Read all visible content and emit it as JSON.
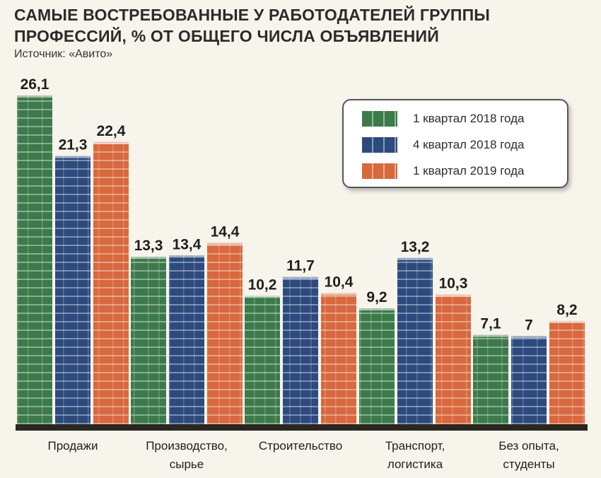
{
  "title": "САМЫЕ ВОСТРЕБОВАННЫЕ У РАБОТОДАТЕЛЕЙ ГРУППЫ ПРОФЕССИЙ, % ОТ ОБЩЕГО ЧИСЛА ОБЪЯВЛЕНИЙ",
  "source": "Источник: «Авито»",
  "colors": {
    "green": "#3d7a4b",
    "blue": "#2d4a7e",
    "orange": "#d8683d",
    "base": "#2a2620"
  },
  "chart_data": {
    "type": "bar",
    "title": "САМЫЕ ВОСТРЕБОВАННЫЕ У РАБОТОДАТЕЛЕЙ ГРУППЫ ПРОФЕССИЙ, % ОТ ОБЩЕГО ЧИСЛА ОБЪЯВЛЕНИЙ",
    "categories": [
      [
        "Продажи"
      ],
      [
        "Производство,",
        "сырье"
      ],
      [
        "Строительство"
      ],
      [
        "Транспорт,",
        "логистика"
      ],
      [
        "Без опыта,",
        "студенты"
      ]
    ],
    "series": [
      {
        "name": "1 квартал 2018 года",
        "values": [
          26.1,
          13.3,
          10.2,
          9.2,
          7.1
        ],
        "labels": [
          "26,1",
          "13,3",
          "10,2",
          "9,2",
          "7,1"
        ],
        "color": "#3d7a4b"
      },
      {
        "name": "4 квартал 2018 года",
        "values": [
          21.3,
          13.4,
          11.7,
          13.2,
          7
        ],
        "labels": [
          "21,3",
          "13,4",
          "11,7",
          "13,2",
          "7"
        ],
        "color": "#2d4a7e"
      },
      {
        "name": "1 квартал 2019 года",
        "values": [
          22.4,
          14.4,
          10.4,
          10.3,
          8.2
        ],
        "labels": [
          "22,4",
          "14,4",
          "10,4",
          "10,3",
          "8,2"
        ],
        "color": "#d8683d"
      }
    ],
    "ylim": [
      0,
      26.1
    ],
    "grid": false,
    "legend": "top-right"
  }
}
